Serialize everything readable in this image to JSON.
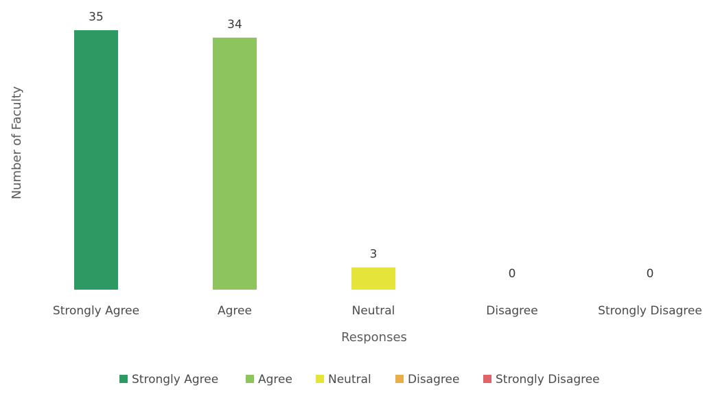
{
  "chart_data": {
    "type": "bar",
    "categories": [
      "Strongly Agree",
      "Agree",
      "Neutral",
      "Disagree",
      "Strongly Disagree"
    ],
    "values": [
      35,
      34,
      3,
      0,
      0
    ],
    "data_labels": [
      "35",
      "34",
      "3",
      "0",
      "0"
    ],
    "colors": [
      "#2e9a63",
      "#8dc45e",
      "#e4e43a",
      "#e9ad4a",
      "#e0646c"
    ],
    "xlabel": "Responses",
    "ylabel": "Number of Faculty",
    "ylim": [
      0,
      35
    ],
    "grid": false,
    "legend": {
      "position": "bottom",
      "entries": [
        "Strongly Agree",
        "Agree",
        "Neutral",
        "Disagree",
        "Strongly Disagree"
      ]
    }
  }
}
